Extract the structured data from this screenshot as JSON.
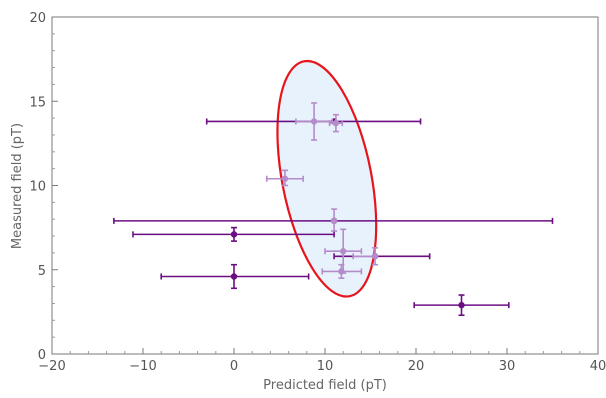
{
  "chart_data": {
    "type": "scatter",
    "title": "",
    "xlabel": "Predicted field (pT)",
    "ylabel": "Measured field (pT)",
    "xlim": [
      -20,
      40
    ],
    "ylim": [
      0,
      20
    ],
    "x_ticks": [
      -20,
      -10,
      0,
      10,
      20,
      30,
      40
    ],
    "y_ticks": [
      0,
      5,
      10,
      15,
      20
    ],
    "x_tick_labels": [
      "−20",
      "−10",
      "0",
      "10",
      "20",
      "30",
      "40"
    ],
    "y_tick_labels": [
      "0",
      "5",
      "10",
      "15",
      "20"
    ],
    "grid": false,
    "frame": true,
    "series": [
      {
        "color": "#6a0e82",
        "points": [
          {
            "x": 0,
            "y": 7.1,
            "xerr_low": -11.1,
            "xerr_high": 11.0,
            "yerr_low": 6.7,
            "yerr_high": 7.5
          },
          {
            "x": 0,
            "y": 4.6,
            "xerr_low": -8.0,
            "xerr_high": 8.2,
            "yerr_low": 3.9,
            "yerr_high": 5.3
          },
          {
            "x": 25.0,
            "y": 2.9,
            "xerr_low": 19.8,
            "xerr_high": 30.2,
            "yerr_low": 2.3,
            "yerr_high": 3.5
          },
          {
            "x": 11.0,
            "y": 13.8,
            "xerr_low": -3.0,
            "xerr_high": 20.5,
            "yerr_low": 13.8,
            "yerr_high": 13.8
          },
          {
            "x": 11.0,
            "y": 7.9,
            "xerr_low": -13.2,
            "xerr_high": 35.0,
            "yerr_low": 7.9,
            "yerr_high": 7.9
          },
          {
            "x": 15.5,
            "y": 5.8,
            "xerr_low": 11.0,
            "xerr_high": 21.5,
            "yerr_low": 5.8,
            "yerr_high": 5.8
          }
        ]
      },
      {
        "color": "#b58cca",
        "points": [
          {
            "x": 8.8,
            "y": 13.8,
            "xerr_low": 6.8,
            "xerr_high": 10.8,
            "yerr_low": 12.7,
            "yerr_high": 14.9
          },
          {
            "x": 11.2,
            "y": 13.7,
            "xerr_low": 10.5,
            "xerr_high": 11.9,
            "yerr_low": 13.2,
            "yerr_high": 14.2
          },
          {
            "x": 5.6,
            "y": 10.4,
            "xerr_low": 3.6,
            "xerr_high": 7.6,
            "yerr_low": 10.0,
            "yerr_high": 10.9
          },
          {
            "x": 11.0,
            "y": 7.9,
            "xerr_low": 11.0,
            "xerr_high": 11.0,
            "yerr_low": 7.3,
            "yerr_high": 8.6
          },
          {
            "x": 12.0,
            "y": 6.1,
            "xerr_low": 10.0,
            "xerr_high": 14.0,
            "yerr_low": 4.8,
            "yerr_high": 7.4
          },
          {
            "x": 11.8,
            "y": 4.9,
            "xerr_low": 9.7,
            "xerr_high": 14.0,
            "yerr_low": 4.5,
            "yerr_high": 5.3
          },
          {
            "x": 15.5,
            "y": 5.8,
            "xerr_low": 13.1,
            "xerr_high": 15.5,
            "yerr_low": 5.3,
            "yerr_high": 6.3
          }
        ]
      }
    ],
    "ellipse": {
      "center": [
        10.2,
        10.4
      ],
      "semi_axes": [
        4.9,
        7.1
      ],
      "rotation_deg": -11,
      "stroke": "#e8141c",
      "fill": "#e8f2fc"
    }
  }
}
